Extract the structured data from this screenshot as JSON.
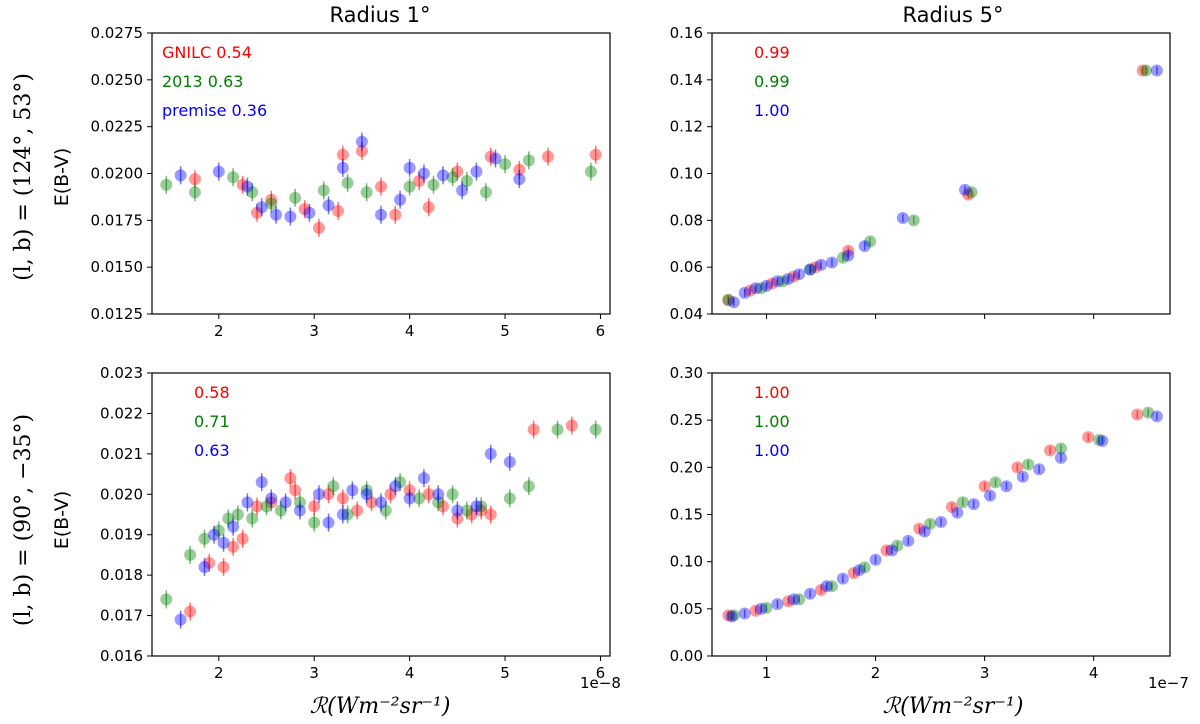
{
  "column_titles": [
    "Radius 1°",
    "Radius 5°"
  ],
  "row_labels": [
    "(l, b) = (124°, 53°)",
    "(l, b) = (90°, −35°)"
  ],
  "ylabel": "E(B-V)",
  "xlabel": "ℛ(Wm⁻²sr⁻¹)",
  "x_offsets": [
    "1e−8",
    "1e−7"
  ],
  "colors": {
    "GNILC": "#ff0000",
    "2013": "#008000",
    "premise": "#0000ff"
  },
  "chart_data": [
    {
      "type": "scatter",
      "title": "Radius 1°",
      "xlabel": "",
      "ylabel": "E(B-V)",
      "xlim": [
        1.3,
        6.1
      ],
      "ylim": [
        0.0125,
        0.0275
      ],
      "x_ticks": [
        2,
        3,
        4,
        5,
        6
      ],
      "y_ticks": [
        0.0125,
        0.015,
        0.0175,
        0.02,
        0.0225,
        0.025,
        0.0275
      ],
      "y_tick_labels": [
        "0.0125",
        "0.0150",
        "0.0175",
        "0.0200",
        "0.0225",
        "0.0250",
        "0.0275"
      ],
      "x_tick_labels": [
        "2",
        "3",
        "4",
        "5",
        "6"
      ],
      "legend": [
        {
          "text": "GNILC 0.54",
          "color": "#ff0000"
        },
        {
          "text": "2013 0.63",
          "color": "#008000"
        },
        {
          "text": "premise 0.36",
          "color": "#0000ff"
        }
      ],
      "series": [
        {
          "name": "GNILC",
          "color": "#ff0000",
          "x": [
            1.75,
            2.25,
            2.4,
            2.55,
            2.9,
            3.05,
            3.25,
            3.3,
            3.5,
            3.7,
            3.85,
            4.1,
            4.2,
            4.5,
            4.85,
            5.15,
            5.45,
            5.95
          ],
          "y": [
            0.0197,
            0.0194,
            0.0179,
            0.0186,
            0.0181,
            0.0171,
            0.018,
            0.021,
            0.0212,
            0.0193,
            0.0178,
            0.0196,
            0.0182,
            0.0201,
            0.0209,
            0.0202,
            0.0209,
            0.021
          ]
        },
        {
          "name": "2013",
          "color": "#008000",
          "x": [
            1.45,
            1.75,
            2.15,
            2.35,
            2.55,
            2.8,
            3.1,
            3.35,
            3.55,
            4.0,
            4.25,
            4.45,
            4.6,
            4.8,
            5.0,
            5.25,
            5.9
          ],
          "y": [
            0.0194,
            0.019,
            0.0198,
            0.019,
            0.0184,
            0.0187,
            0.0191,
            0.0195,
            0.019,
            0.0193,
            0.0194,
            0.0198,
            0.0196,
            0.019,
            0.0205,
            0.0207,
            0.0201
          ]
        },
        {
          "name": "premise",
          "color": "#0000ff",
          "x": [
            1.6,
            2.0,
            2.3,
            2.45,
            2.6,
            2.75,
            2.95,
            3.15,
            3.3,
            3.5,
            3.7,
            3.9,
            4.0,
            4.15,
            4.35,
            4.55,
            4.7,
            4.9,
            5.15
          ],
          "y": [
            0.0199,
            0.0201,
            0.0193,
            0.0182,
            0.0178,
            0.0177,
            0.0179,
            0.0183,
            0.0203,
            0.0217,
            0.0178,
            0.0186,
            0.0203,
            0.02,
            0.0199,
            0.0191,
            0.0201,
            0.0208,
            0.0197
          ]
        }
      ]
    },
    {
      "type": "scatter",
      "title": "Radius 5°",
      "xlabel": "",
      "ylabel": "",
      "xlim": [
        0.5,
        4.7
      ],
      "ylim": [
        0.04,
        0.16
      ],
      "x_ticks": [
        1,
        2,
        3,
        4
      ],
      "y_ticks": [
        0.04,
        0.06,
        0.08,
        0.1,
        0.12,
        0.14,
        0.16
      ],
      "y_tick_labels": [
        "0.04",
        "0.06",
        "0.08",
        "0.10",
        "0.12",
        "0.14",
        "0.16"
      ],
      "x_tick_labels": [],
      "legend": [
        {
          "text": "0.99",
          "color": "#ff0000"
        },
        {
          "text": "0.99",
          "color": "#008000"
        },
        {
          "text": "1.00",
          "color": "#0000ff"
        }
      ],
      "series": [
        {
          "name": "GNILC",
          "color": "#ff0000",
          "x": [
            0.65,
            0.85,
            1.05,
            1.25,
            1.45,
            1.75,
            2.85,
            4.45
          ],
          "y": [
            0.046,
            0.05,
            0.053,
            0.056,
            0.06,
            0.067,
            0.091,
            0.144
          ]
        },
        {
          "name": "2013",
          "color": "#008000",
          "x": [
            0.65,
            0.95,
            1.15,
            1.4,
            1.7,
            1.95,
            2.35,
            2.88,
            4.48
          ],
          "y": [
            0.046,
            0.051,
            0.054,
            0.059,
            0.064,
            0.071,
            0.08,
            0.092,
            0.144
          ]
        },
        {
          "name": "premise",
          "color": "#0000ff",
          "x": [
            0.7,
            0.8,
            0.9,
            1.0,
            1.1,
            1.2,
            1.3,
            1.4,
            1.5,
            1.6,
            1.75,
            1.9,
            2.25,
            2.82,
            4.58
          ],
          "y": [
            0.045,
            0.049,
            0.051,
            0.052,
            0.054,
            0.055,
            0.057,
            0.059,
            0.061,
            0.062,
            0.065,
            0.069,
            0.081,
            0.093,
            0.144
          ]
        }
      ]
    },
    {
      "type": "scatter",
      "title": "",
      "xlabel": "ℛ(Wm⁻²sr⁻¹)",
      "ylabel": "E(B-V)",
      "xlim": [
        1.3,
        6.1
      ],
      "ylim": [
        0.016,
        0.023
      ],
      "x_ticks": [
        2,
        3,
        4,
        5,
        6
      ],
      "y_ticks": [
        0.016,
        0.017,
        0.018,
        0.019,
        0.02,
        0.021,
        0.022,
        0.023
      ],
      "y_tick_labels": [
        "0.016",
        "0.017",
        "0.018",
        "0.019",
        "0.020",
        "0.021",
        "0.022",
        "0.023"
      ],
      "x_tick_labels": [
        "2",
        "3",
        "4",
        "5",
        "6"
      ],
      "x_offset": "1e−8",
      "legend": [
        {
          "text": "0.58",
          "color": "#ff0000"
        },
        {
          "text": "0.71",
          "color": "#008000"
        },
        {
          "text": "0.63",
          "color": "#0000ff"
        }
      ],
      "series": [
        {
          "name": "GNILC",
          "color": "#ff0000",
          "x": [
            1.7,
            1.9,
            2.05,
            2.15,
            2.25,
            2.4,
            2.55,
            2.75,
            2.8,
            3.0,
            3.15,
            3.3,
            3.45,
            3.6,
            3.8,
            4.0,
            4.2,
            4.35,
            4.5,
            4.65,
            4.75,
            4.85,
            5.3,
            5.7
          ],
          "y": [
            0.0171,
            0.0183,
            0.0182,
            0.0187,
            0.0189,
            0.0197,
            0.0198,
            0.0204,
            0.0201,
            0.0197,
            0.02,
            0.0199,
            0.0196,
            0.0198,
            0.02,
            0.0201,
            0.02,
            0.0197,
            0.0194,
            0.0195,
            0.0196,
            0.0195,
            0.0216,
            0.0217
          ]
        },
        {
          "name": "2013",
          "color": "#008000",
          "x": [
            1.45,
            1.7,
            1.85,
            2.0,
            2.1,
            2.2,
            2.35,
            2.5,
            2.65,
            2.85,
            3.0,
            3.2,
            3.35,
            3.55,
            3.75,
            3.9,
            4.1,
            4.3,
            4.45,
            4.6,
            4.75,
            5.05,
            5.25,
            5.55,
            5.95
          ],
          "y": [
            0.0174,
            0.0185,
            0.0189,
            0.0191,
            0.0194,
            0.0195,
            0.0194,
            0.0197,
            0.0196,
            0.0198,
            0.0193,
            0.0202,
            0.0195,
            0.0201,
            0.0196,
            0.0203,
            0.0199,
            0.0198,
            0.02,
            0.0196,
            0.0197,
            0.0199,
            0.0202,
            0.0216,
            0.0216
          ]
        },
        {
          "name": "premise",
          "color": "#0000ff",
          "x": [
            1.6,
            1.85,
            1.95,
            2.05,
            2.15,
            2.3,
            2.45,
            2.55,
            2.7,
            2.85,
            3.05,
            3.15,
            3.3,
            3.4,
            3.55,
            3.7,
            3.85,
            4.0,
            4.15,
            4.3,
            4.5,
            4.7,
            4.85,
            5.05
          ],
          "y": [
            0.0169,
            0.0182,
            0.019,
            0.0188,
            0.0192,
            0.0198,
            0.0203,
            0.0199,
            0.0198,
            0.0196,
            0.02,
            0.0193,
            0.0195,
            0.0201,
            0.02,
            0.0198,
            0.0202,
            0.0199,
            0.0204,
            0.02,
            0.0196,
            0.0197,
            0.021,
            0.0208
          ]
        }
      ]
    },
    {
      "type": "scatter",
      "title": "",
      "xlabel": "ℛ(Wm⁻²sr⁻¹)",
      "ylabel": "",
      "xlim": [
        0.5,
        4.7
      ],
      "ylim": [
        0.0,
        0.3
      ],
      "x_ticks": [
        1,
        2,
        3,
        4
      ],
      "y_ticks": [
        0.0,
        0.05,
        0.1,
        0.15,
        0.2,
        0.25,
        0.3
      ],
      "y_tick_labels": [
        "0.00",
        "0.05",
        "0.10",
        "0.15",
        "0.20",
        "0.25",
        "0.30"
      ],
      "x_tick_labels": [
        "1",
        "2",
        "3",
        "4"
      ],
      "x_offset": "1e−7",
      "legend": [
        {
          "text": "1.00",
          "color": "#ff0000"
        },
        {
          "text": "1.00",
          "color": "#008000"
        },
        {
          "text": "1.00",
          "color": "#0000ff"
        }
      ],
      "series": [
        {
          "name": "GNILC",
          "color": "#ff0000",
          "x": [
            0.65,
            0.9,
            1.2,
            1.5,
            1.8,
            2.1,
            2.4,
            2.7,
            3.0,
            3.3,
            3.6,
            3.95,
            4.4
          ],
          "y": [
            0.043,
            0.048,
            0.058,
            0.07,
            0.088,
            0.112,
            0.135,
            0.158,
            0.18,
            0.2,
            0.218,
            0.232,
            0.256
          ]
        },
        {
          "name": "2013",
          "color": "#008000",
          "x": [
            0.7,
            1.0,
            1.3,
            1.6,
            1.9,
            2.2,
            2.5,
            2.8,
            3.1,
            3.4,
            3.7,
            4.05,
            4.5
          ],
          "y": [
            0.043,
            0.051,
            0.06,
            0.074,
            0.094,
            0.117,
            0.14,
            0.163,
            0.184,
            0.203,
            0.22,
            0.229,
            0.258
          ]
        },
        {
          "name": "premise",
          "color": "#0000ff",
          "x": [
            0.68,
            0.8,
            0.95,
            1.1,
            1.25,
            1.4,
            1.55,
            1.7,
            1.85,
            2.0,
            2.15,
            2.3,
            2.45,
            2.6,
            2.75,
            2.9,
            3.05,
            3.2,
            3.35,
            3.5,
            3.7,
            4.08,
            4.58
          ],
          "y": [
            0.042,
            0.045,
            0.05,
            0.055,
            0.06,
            0.066,
            0.074,
            0.082,
            0.091,
            0.102,
            0.112,
            0.122,
            0.132,
            0.142,
            0.152,
            0.161,
            0.17,
            0.18,
            0.19,
            0.198,
            0.21,
            0.228,
            0.254
          ]
        }
      ]
    }
  ]
}
